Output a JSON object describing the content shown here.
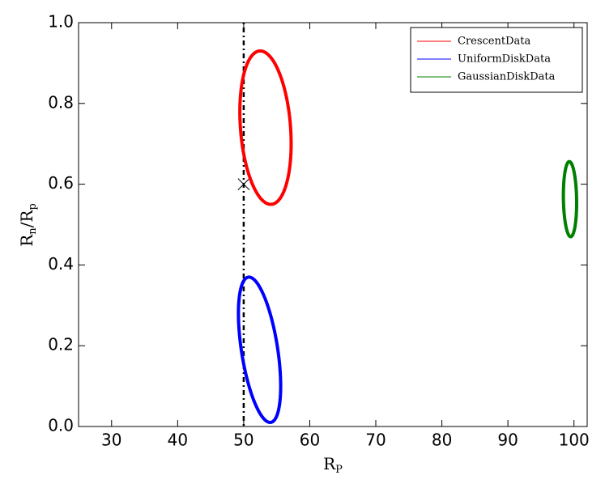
{
  "chart_data": {
    "type": "ellipse",
    "xlabel": [
      "R",
      "P"
    ],
    "ylabel": [
      "R",
      "n",
      "/R",
      "p"
    ],
    "xlim": [
      25,
      102
    ],
    "ylim": [
      0,
      1
    ],
    "xticks": [
      30,
      40,
      50,
      60,
      70,
      80,
      90,
      100
    ],
    "yticks": [
      {
        "value": 0,
        "label": "0.0"
      },
      {
        "value": 0.2,
        "label": "0.2"
      },
      {
        "value": 0.4,
        "label": "0.4"
      },
      {
        "value": 0.6,
        "label": "0.6"
      },
      {
        "value": 0.8,
        "label": "0.8"
      },
      {
        "value": 1,
        "label": "1.0"
      }
    ],
    "vline": 50,
    "marker": {
      "x": 50,
      "y": 0.6
    },
    "legend": "upper right",
    "series": [
      {
        "name": "CrescentData",
        "color": "#ff0000",
        "center": [
          53.3,
          0.74
        ],
        "axis_a": [
          -0.8,
          0.19
        ],
        "axis_b": [
          3.8,
          0
        ]
      },
      {
        "name": "UniformDiskData",
        "color": "#0000ff",
        "center": [
          52.4,
          0.19
        ],
        "axis_a": [
          -1.6,
          0.18
        ],
        "axis_b": [
          2.77,
          0
        ]
      },
      {
        "name": "GaussianDiskData",
        "color": "#007f00",
        "center": [
          99.4,
          0.563
        ],
        "axis_a": [
          -0.1,
          0.093
        ],
        "axis_b": [
          1,
          0
        ]
      }
    ]
  }
}
